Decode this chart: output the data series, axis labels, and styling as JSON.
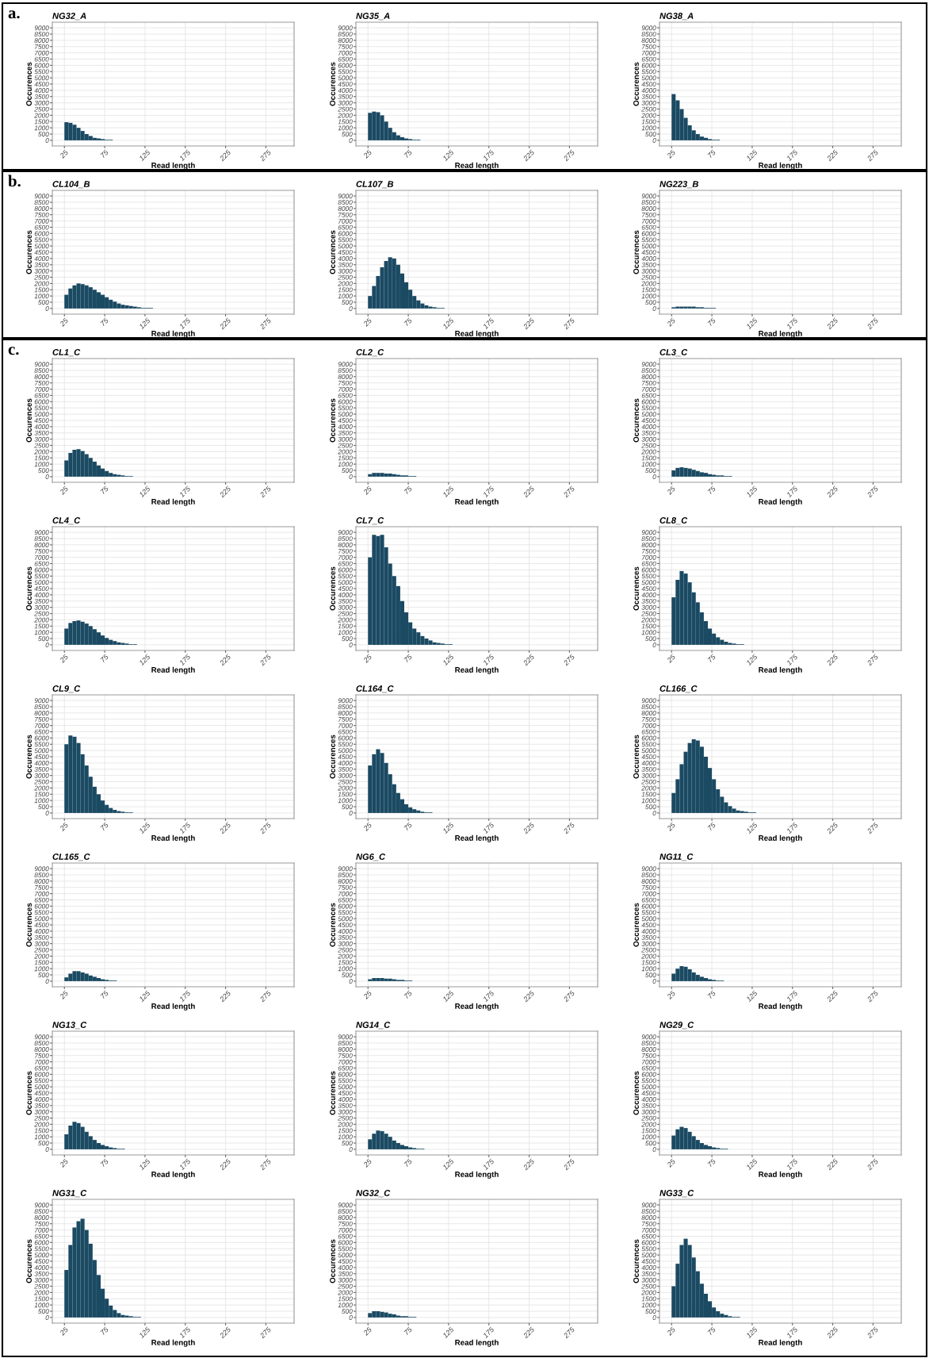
{
  "chart_data": [
    {
      "type": "histogram",
      "title": "NG32_A",
      "annotations": [
        "a."
      ],
      "xlabel": "Read length",
      "ylabel": "Occurences",
      "color": "#1b4a63",
      "xlim": [
        10,
        310
      ],
      "ylim": [
        -450,
        9450
      ],
      "xticks": [
        25,
        75,
        125,
        175,
        225,
        275
      ],
      "yticks": [
        0,
        500,
        1000,
        1500,
        2000,
        2500,
        3000,
        3500,
        4000,
        4500,
        5000,
        5500,
        6000,
        6500,
        7000,
        7500,
        8000,
        8500,
        9000
      ],
      "grid": true,
      "bins": [
        25,
        30,
        35,
        40,
        45,
        50,
        55,
        60,
        65,
        70,
        75,
        80,
        85
      ],
      "values": [
        1450,
        1400,
        1250,
        1000,
        750,
        500,
        350,
        200,
        150,
        100,
        50,
        50
      ]
    },
    {
      "type": "histogram",
      "title": "NG35_A",
      "xlabel": "Read length",
      "ylabel": "Occurences",
      "color": "#1b4a63",
      "xlim": [
        10,
        310
      ],
      "ylim": [
        -450,
        9450
      ],
      "xticks": [
        25,
        75,
        125,
        175,
        225,
        275
      ],
      "yticks": [
        0,
        500,
        1000,
        1500,
        2000,
        2500,
        3000,
        3500,
        4000,
        4500,
        5000,
        5500,
        6000,
        6500,
        7000,
        7500,
        8000,
        8500,
        9000
      ],
      "grid": true,
      "bins": [
        25,
        30,
        35,
        40,
        45,
        50,
        55,
        60,
        65,
        70,
        75,
        80,
        85,
        90
      ],
      "values": [
        2200,
        2300,
        2250,
        2000,
        1500,
        1000,
        650,
        400,
        250,
        150,
        100,
        50,
        50
      ]
    },
    {
      "type": "histogram",
      "title": "NG38_A",
      "xlabel": "Read length",
      "ylabel": "Occurences",
      "color": "#1b4a63",
      "xlim": [
        10,
        310
      ],
      "ylim": [
        -450,
        9450
      ],
      "xticks": [
        25,
        75,
        125,
        175,
        225,
        275
      ],
      "yticks": [
        0,
        500,
        1000,
        1500,
        2000,
        2500,
        3000,
        3500,
        4000,
        4500,
        5000,
        5500,
        6000,
        6500,
        7000,
        7500,
        8000,
        8500,
        9000
      ],
      "grid": true,
      "bins": [
        25,
        30,
        35,
        40,
        45,
        50,
        55,
        60,
        65,
        70,
        75,
        80,
        85
      ],
      "values": [
        3700,
        3200,
        2500,
        1800,
        1200,
        800,
        500,
        300,
        200,
        100,
        50,
        50
      ]
    },
    {
      "type": "histogram",
      "title": "CL104_B",
      "annotations": [
        "b."
      ],
      "xlabel": "Read length",
      "ylabel": "Occurences",
      "color": "#1b4a63",
      "xlim": [
        10,
        310
      ],
      "ylim": [
        -450,
        9450
      ],
      "xticks": [
        25,
        75,
        125,
        175,
        225,
        275
      ],
      "yticks": [
        0,
        500,
        1000,
        1500,
        2000,
        2500,
        3000,
        3500,
        4000,
        4500,
        5000,
        5500,
        6000,
        6500,
        7000,
        7500,
        8000,
        8500,
        9000
      ],
      "grid": true,
      "bins": [
        25,
        30,
        35,
        40,
        45,
        50,
        55,
        60,
        65,
        70,
        75,
        80,
        85,
        90,
        95,
        100,
        105,
        110,
        115,
        120,
        125,
        130,
        135
      ],
      "values": [
        1100,
        1600,
        1850,
        2000,
        1950,
        1850,
        1700,
        1500,
        1300,
        1100,
        900,
        700,
        550,
        400,
        300,
        250,
        200,
        150,
        100,
        50,
        50,
        50
      ]
    },
    {
      "type": "histogram",
      "title": "CL107_B",
      "xlabel": "Read length",
      "ylabel": "Occurences",
      "color": "#1b4a63",
      "xlim": [
        10,
        310
      ],
      "ylim": [
        -450,
        9450
      ],
      "xticks": [
        25,
        75,
        125,
        175,
        225,
        275
      ],
      "yticks": [
        0,
        500,
        1000,
        1500,
        2000,
        2500,
        3000,
        3500,
        4000,
        4500,
        5000,
        5500,
        6000,
        6500,
        7000,
        7500,
        8000,
        8500,
        9000
      ],
      "grid": true,
      "bins": [
        25,
        30,
        35,
        40,
        45,
        50,
        55,
        60,
        65,
        70,
        75,
        80,
        85,
        90,
        95,
        100,
        105,
        110,
        115,
        120
      ],
      "values": [
        1000,
        1800,
        2600,
        3300,
        3800,
        4100,
        4000,
        3500,
        2800,
        2100,
        1500,
        1000,
        650,
        400,
        250,
        150,
        100,
        50,
        50
      ]
    },
    {
      "type": "histogram",
      "title": "NG223_B",
      "xlabel": "Read length",
      "ylabel": "Occurences",
      "color": "#1b4a63",
      "xlim": [
        10,
        310
      ],
      "ylim": [
        -450,
        9450
      ],
      "xticks": [
        25,
        75,
        125,
        175,
        225,
        275
      ],
      "yticks": [
        0,
        500,
        1000,
        1500,
        2000,
        2500,
        3000,
        3500,
        4000,
        4500,
        5000,
        5500,
        6000,
        6500,
        7000,
        7500,
        8000,
        8500,
        9000
      ],
      "grid": true,
      "bins": [
        25,
        30,
        35,
        40,
        45,
        50,
        55,
        60,
        65,
        70,
        75,
        80
      ],
      "values": [
        100,
        150,
        150,
        150,
        150,
        150,
        100,
        100,
        50,
        50,
        50
      ]
    },
    {
      "type": "histogram",
      "title": "CL1_C",
      "annotations": [
        "c."
      ],
      "xlabel": "Read length",
      "ylabel": "Occurences",
      "color": "#1b4a63",
      "xlim": [
        10,
        310
      ],
      "ylim": [
        -450,
        9450
      ],
      "xticks": [
        25,
        75,
        125,
        175,
        225,
        275
      ],
      "yticks": [
        0,
        500,
        1000,
        1500,
        2000,
        2500,
        3000,
        3500,
        4000,
        4500,
        5000,
        5500,
        6000,
        6500,
        7000,
        7500,
        8000,
        8500,
        9000
      ],
      "grid": true,
      "bins": [
        25,
        30,
        35,
        40,
        45,
        50,
        55,
        60,
        65,
        70,
        75,
        80,
        85,
        90,
        95,
        100,
        105,
        110
      ],
      "values": [
        1300,
        1900,
        2150,
        2200,
        2050,
        1800,
        1500,
        1200,
        900,
        650,
        450,
        300,
        200,
        150,
        100,
        50,
        50
      ]
    },
    {
      "type": "histogram",
      "title": "CL2_C",
      "xlabel": "Read length",
      "ylabel": "Occurences",
      "color": "#1b4a63",
      "xlim": [
        10,
        310
      ],
      "ylim": [
        -450,
        9450
      ],
      "xticks": [
        25,
        75,
        125,
        175,
        225,
        275
      ],
      "yticks": [
        0,
        500,
        1000,
        1500,
        2000,
        2500,
        3000,
        3500,
        4000,
        4500,
        5000,
        5500,
        6000,
        6500,
        7000,
        7500,
        8000,
        8500,
        9000
      ],
      "grid": true,
      "bins": [
        25,
        30,
        35,
        40,
        45,
        50,
        55,
        60,
        65,
        70,
        75,
        80,
        85
      ],
      "values": [
        200,
        300,
        300,
        300,
        250,
        250,
        200,
        150,
        100,
        100,
        50,
        50
      ]
    },
    {
      "type": "histogram",
      "title": "CL3_C",
      "xlabel": "Read length",
      "ylabel": "Occurences",
      "color": "#1b4a63",
      "xlim": [
        10,
        310
      ],
      "ylim": [
        -450,
        9450
      ],
      "xticks": [
        25,
        75,
        125,
        175,
        225,
        275
      ],
      "yticks": [
        0,
        500,
        1000,
        1500,
        2000,
        2500,
        3000,
        3500,
        4000,
        4500,
        5000,
        5500,
        6000,
        6500,
        7000,
        7500,
        8000,
        8500,
        9000
      ],
      "grid": true,
      "bins": [
        25,
        30,
        35,
        40,
        45,
        50,
        55,
        60,
        65,
        70,
        75,
        80,
        85,
        90,
        95,
        100
      ],
      "values": [
        500,
        700,
        750,
        700,
        650,
        550,
        450,
        350,
        300,
        200,
        150,
        100,
        100,
        50,
        50
      ]
    },
    {
      "type": "histogram",
      "title": "CL4_C",
      "xlabel": "Read length",
      "ylabel": "Occurences",
      "color": "#1b4a63",
      "xlim": [
        10,
        310
      ],
      "ylim": [
        -450,
        9450
      ],
      "xticks": [
        25,
        75,
        125,
        175,
        225,
        275
      ],
      "yticks": [
        0,
        500,
        1000,
        1500,
        2000,
        2500,
        3000,
        3500,
        4000,
        4500,
        5000,
        5500,
        6000,
        6500,
        7000,
        7500,
        8000,
        8500,
        9000
      ],
      "grid": true,
      "bins": [
        25,
        30,
        35,
        40,
        45,
        50,
        55,
        60,
        65,
        70,
        75,
        80,
        85,
        90,
        95,
        100,
        105,
        110,
        115
      ],
      "values": [
        1300,
        1750,
        1900,
        1950,
        1850,
        1700,
        1500,
        1250,
        1000,
        750,
        550,
        400,
        300,
        200,
        150,
        100,
        50,
        50
      ]
    },
    {
      "type": "histogram",
      "title": "CL7_C",
      "xlabel": "Read length",
      "ylabel": "Occurences",
      "color": "#1b4a63",
      "xlim": [
        10,
        310
      ],
      "ylim": [
        -450,
        9450
      ],
      "xticks": [
        25,
        75,
        125,
        175,
        225,
        275
      ],
      "yticks": [
        0,
        500,
        1000,
        1500,
        2000,
        2500,
        3000,
        3500,
        4000,
        4500,
        5000,
        5500,
        6000,
        6500,
        7000,
        7500,
        8000,
        8500,
        9000
      ],
      "grid": true,
      "bins": [
        25,
        30,
        35,
        40,
        45,
        50,
        55,
        60,
        65,
        70,
        75,
        80,
        85,
        90,
        95,
        100,
        105,
        110,
        115,
        120,
        125,
        130
      ],
      "values": [
        7000,
        8800,
        8700,
        8800,
        7800,
        6500,
        5500,
        4700,
        3500,
        2600,
        1800,
        1300,
        1000,
        700,
        500,
        350,
        200,
        150,
        100,
        50,
        50
      ]
    },
    {
      "type": "histogram",
      "title": "CL8_C",
      "xlabel": "Read length",
      "ylabel": "Occurences",
      "color": "#1b4a63",
      "xlim": [
        10,
        310
      ],
      "ylim": [
        -450,
        9450
      ],
      "xticks": [
        25,
        75,
        125,
        175,
        225,
        275
      ],
      "yticks": [
        0,
        500,
        1000,
        1500,
        2000,
        2500,
        3000,
        3500,
        4000,
        4500,
        5000,
        5500,
        6000,
        6500,
        7000,
        7500,
        8000,
        8500,
        9000
      ],
      "grid": true,
      "bins": [
        25,
        30,
        35,
        40,
        45,
        50,
        55,
        60,
        65,
        70,
        75,
        80,
        85,
        90,
        95,
        100,
        105,
        110,
        115
      ],
      "values": [
        3800,
        5200,
        5900,
        5700,
        5000,
        4200,
        3400,
        2600,
        1900,
        1300,
        900,
        600,
        400,
        250,
        150,
        100,
        50,
        50
      ]
    },
    {
      "type": "histogram",
      "title": "CL9_C",
      "xlabel": "Read length",
      "ylabel": "Occurences",
      "color": "#1b4a63",
      "xlim": [
        10,
        310
      ],
      "ylim": [
        -450,
        9450
      ],
      "xticks": [
        25,
        75,
        125,
        175,
        225,
        275
      ],
      "yticks": [
        0,
        500,
        1000,
        1500,
        2000,
        2500,
        3000,
        3500,
        4000,
        4500,
        5000,
        5500,
        6000,
        6500,
        7000,
        7500,
        8000,
        8500,
        9000
      ],
      "grid": true,
      "bins": [
        25,
        30,
        35,
        40,
        45,
        50,
        55,
        60,
        65,
        70,
        75,
        80,
        85,
        90,
        95,
        100,
        105,
        110
      ],
      "values": [
        5500,
        6200,
        6100,
        5600,
        4700,
        3800,
        2900,
        2100,
        1500,
        1000,
        650,
        400,
        250,
        150,
        100,
        50,
        50
      ]
    },
    {
      "type": "histogram",
      "title": "CL164_C",
      "xlabel": "Read length",
      "ylabel": "Occurences",
      "color": "#1b4a63",
      "xlim": [
        10,
        310
      ],
      "ylim": [
        -450,
        9450
      ],
      "xticks": [
        25,
        75,
        125,
        175,
        225,
        275
      ],
      "yticks": [
        0,
        500,
        1000,
        1500,
        2000,
        2500,
        3000,
        3500,
        4000,
        4500,
        5000,
        5500,
        6000,
        6500,
        7000,
        7500,
        8000,
        8500,
        9000
      ],
      "grid": true,
      "bins": [
        25,
        30,
        35,
        40,
        45,
        50,
        55,
        60,
        65,
        70,
        75,
        80,
        85,
        90,
        95,
        100,
        105
      ],
      "values": [
        3800,
        4700,
        5100,
        4800,
        4000,
        3100,
        2300,
        1600,
        1100,
        700,
        450,
        300,
        200,
        100,
        50,
        50
      ]
    },
    {
      "type": "histogram",
      "title": "CL166_C",
      "xlabel": "Read length",
      "ylabel": "Occurences",
      "color": "#1b4a63",
      "xlim": [
        10,
        310
      ],
      "ylim": [
        -450,
        9450
      ],
      "xticks": [
        25,
        75,
        125,
        175,
        225,
        275
      ],
      "yticks": [
        0,
        500,
        1000,
        1500,
        2000,
        2500,
        3000,
        3500,
        4000,
        4500,
        5000,
        5500,
        6000,
        6500,
        7000,
        7500,
        8000,
        8500,
        9000
      ],
      "grid": true,
      "bins": [
        25,
        30,
        35,
        40,
        45,
        50,
        55,
        60,
        65,
        70,
        75,
        80,
        85,
        90,
        95,
        100,
        105,
        110,
        115,
        120,
        125,
        130
      ],
      "values": [
        1600,
        2700,
        3900,
        4900,
        5600,
        5900,
        5800,
        5300,
        4500,
        3600,
        2700,
        1900,
        1300,
        850,
        550,
        350,
        200,
        150,
        100,
        50,
        50
      ]
    },
    {
      "type": "histogram",
      "title": "CL165_C",
      "xlabel": "Read length",
      "ylabel": "Occurences",
      "color": "#1b4a63",
      "xlim": [
        10,
        310
      ],
      "ylim": [
        -450,
        9450
      ],
      "xticks": [
        25,
        75,
        125,
        175,
        225,
        275
      ],
      "yticks": [
        0,
        500,
        1000,
        1500,
        2000,
        2500,
        3000,
        3500,
        4000,
        4500,
        5000,
        5500,
        6000,
        6500,
        7000,
        7500,
        8000,
        8500,
        9000
      ],
      "grid": true,
      "bins": [
        25,
        30,
        35,
        40,
        45,
        50,
        55,
        60,
        65,
        70,
        75,
        80,
        85,
        90
      ],
      "values": [
        300,
        600,
        800,
        800,
        700,
        600,
        450,
        350,
        250,
        150,
        100,
        50,
        50
      ]
    },
    {
      "type": "histogram",
      "title": "NG6_C",
      "xlabel": "Read length",
      "ylabel": "Occurences",
      "color": "#1b4a63",
      "xlim": [
        10,
        310
      ],
      "ylim": [
        -450,
        9450
      ],
      "xticks": [
        25,
        75,
        125,
        175,
        225,
        275
      ],
      "yticks": [
        0,
        500,
        1000,
        1500,
        2000,
        2500,
        3000,
        3500,
        4000,
        4500,
        5000,
        5500,
        6000,
        6500,
        7000,
        7500,
        8000,
        8500,
        9000
      ],
      "grid": true,
      "bins": [
        25,
        30,
        35,
        40,
        45,
        50,
        55,
        60,
        65,
        70,
        75,
        80
      ],
      "values": [
        150,
        250,
        250,
        250,
        200,
        200,
        150,
        100,
        100,
        50,
        50
      ]
    },
    {
      "type": "histogram",
      "title": "NG11_C",
      "xlabel": "Read length",
      "ylabel": "Occurences",
      "color": "#1b4a63",
      "xlim": [
        10,
        310
      ],
      "ylim": [
        -450,
        9450
      ],
      "xticks": [
        25,
        75,
        125,
        175,
        225,
        275
      ],
      "yticks": [
        0,
        500,
        1000,
        1500,
        2000,
        2500,
        3000,
        3500,
        4000,
        4500,
        5000,
        5500,
        6000,
        6500,
        7000,
        7500,
        8000,
        8500,
        9000
      ],
      "grid": true,
      "bins": [
        25,
        30,
        35,
        40,
        45,
        50,
        55,
        60,
        65,
        70,
        75,
        80,
        85,
        90
      ],
      "values": [
        600,
        1000,
        1200,
        1150,
        950,
        700,
        500,
        350,
        250,
        150,
        100,
        50,
        50
      ]
    },
    {
      "type": "histogram",
      "title": "NG13_C",
      "xlabel": "Read length",
      "ylabel": "Occurences",
      "color": "#1b4a63",
      "xlim": [
        10,
        310
      ],
      "ylim": [
        -450,
        9450
      ],
      "xticks": [
        25,
        75,
        125,
        175,
        225,
        275
      ],
      "yticks": [
        0,
        500,
        1000,
        1500,
        2000,
        2500,
        3000,
        3500,
        4000,
        4500,
        5000,
        5500,
        6000,
        6500,
        7000,
        7500,
        8000,
        8500,
        9000
      ],
      "grid": true,
      "bins": [
        25,
        30,
        35,
        40,
        45,
        50,
        55,
        60,
        65,
        70,
        75,
        80,
        85,
        90,
        95,
        100
      ],
      "values": [
        1200,
        1900,
        2200,
        2100,
        1800,
        1400,
        1050,
        750,
        500,
        350,
        250,
        150,
        100,
        50,
        50
      ]
    },
    {
      "type": "histogram",
      "title": "NG14_C",
      "xlabel": "Read length",
      "ylabel": "Occurences",
      "color": "#1b4a63",
      "xlim": [
        10,
        310
      ],
      "ylim": [
        -450,
        9450
      ],
      "xticks": [
        25,
        75,
        125,
        175,
        225,
        275
      ],
      "yticks": [
        0,
        500,
        1000,
        1500,
        2000,
        2500,
        3000,
        3500,
        4000,
        4500,
        5000,
        5500,
        6000,
        6500,
        7000,
        7500,
        8000,
        8500,
        9000
      ],
      "grid": true,
      "bins": [
        25,
        30,
        35,
        40,
        45,
        50,
        55,
        60,
        65,
        70,
        75,
        80,
        85,
        90,
        95
      ],
      "values": [
        800,
        1250,
        1500,
        1450,
        1250,
        1000,
        700,
        500,
        350,
        250,
        150,
        100,
        50,
        50
      ]
    },
    {
      "type": "histogram",
      "title": "NG29_C",
      "xlabel": "Read length",
      "ylabel": "Occurences",
      "color": "#1b4a63",
      "xlim": [
        10,
        310
      ],
      "ylim": [
        -450,
        9450
      ],
      "xticks": [
        25,
        75,
        125,
        175,
        225,
        275
      ],
      "yticks": [
        0,
        500,
        1000,
        1500,
        2000,
        2500,
        3000,
        3500,
        4000,
        4500,
        5000,
        5500,
        6000,
        6500,
        7000,
        7500,
        8000,
        8500,
        9000
      ],
      "grid": true,
      "bins": [
        25,
        30,
        35,
        40,
        45,
        50,
        55,
        60,
        65,
        70,
        75,
        80,
        85,
        90,
        95
      ],
      "values": [
        1100,
        1600,
        1800,
        1700,
        1400,
        1050,
        750,
        500,
        350,
        250,
        150,
        100,
        50,
        50
      ]
    },
    {
      "type": "histogram",
      "title": "NG31_C",
      "xlabel": "Read length",
      "ylabel": "Occurences",
      "color": "#1b4a63",
      "xlim": [
        10,
        310
      ],
      "ylim": [
        -450,
        9450
      ],
      "xticks": [
        25,
        75,
        125,
        175,
        225,
        275
      ],
      "yticks": [
        0,
        500,
        1000,
        1500,
        2000,
        2500,
        3000,
        3500,
        4000,
        4500,
        5000,
        5500,
        6000,
        6500,
        7000,
        7500,
        8000,
        8500,
        9000
      ],
      "grid": true,
      "bins": [
        25,
        30,
        35,
        40,
        45,
        50,
        55,
        60,
        65,
        70,
        75,
        80,
        85,
        90,
        95,
        100,
        105,
        110,
        115,
        120
      ],
      "values": [
        3800,
        5800,
        7200,
        7700,
        7900,
        7000,
        5900,
        4600,
        3400,
        2300,
        1500,
        950,
        600,
        350,
        200,
        150,
        100,
        50,
        50
      ]
    },
    {
      "type": "histogram",
      "title": "NG32_C",
      "xlabel": "Read length",
      "ylabel": "Occurences",
      "color": "#1b4a63",
      "xlim": [
        10,
        310
      ],
      "ylim": [
        -450,
        9450
      ],
      "xticks": [
        25,
        75,
        125,
        175,
        225,
        275
      ],
      "yticks": [
        0,
        500,
        1000,
        1500,
        2000,
        2500,
        3000,
        3500,
        4000,
        4500,
        5000,
        5500,
        6000,
        6500,
        7000,
        7500,
        8000,
        8500,
        9000
      ],
      "grid": true,
      "bins": [
        25,
        30,
        35,
        40,
        45,
        50,
        55,
        60,
        65,
        70,
        75,
        80,
        85
      ],
      "values": [
        350,
        500,
        500,
        450,
        400,
        300,
        250,
        150,
        100,
        100,
        50,
        50
      ]
    },
    {
      "type": "histogram",
      "title": "NG33_C",
      "xlabel": "Read length",
      "ylabel": "Occurences",
      "color": "#1b4a63",
      "xlim": [
        10,
        310
      ],
      "ylim": [
        -450,
        9450
      ],
      "xticks": [
        25,
        75,
        125,
        175,
        225,
        275
      ],
      "yticks": [
        0,
        500,
        1000,
        1500,
        2000,
        2500,
        3000,
        3500,
        4000,
        4500,
        5000,
        5500,
        6000,
        6500,
        7000,
        7500,
        8000,
        8500,
        9000
      ],
      "grid": true,
      "bins": [
        25,
        30,
        35,
        40,
        45,
        50,
        55,
        60,
        65,
        70,
        75,
        80,
        85,
        90,
        95,
        100,
        105,
        110
      ],
      "values": [
        2500,
        4300,
        5800,
        6300,
        5800,
        4800,
        3700,
        2700,
        1900,
        1300,
        800,
        500,
        300,
        200,
        100,
        50,
        50
      ]
    }
  ]
}
